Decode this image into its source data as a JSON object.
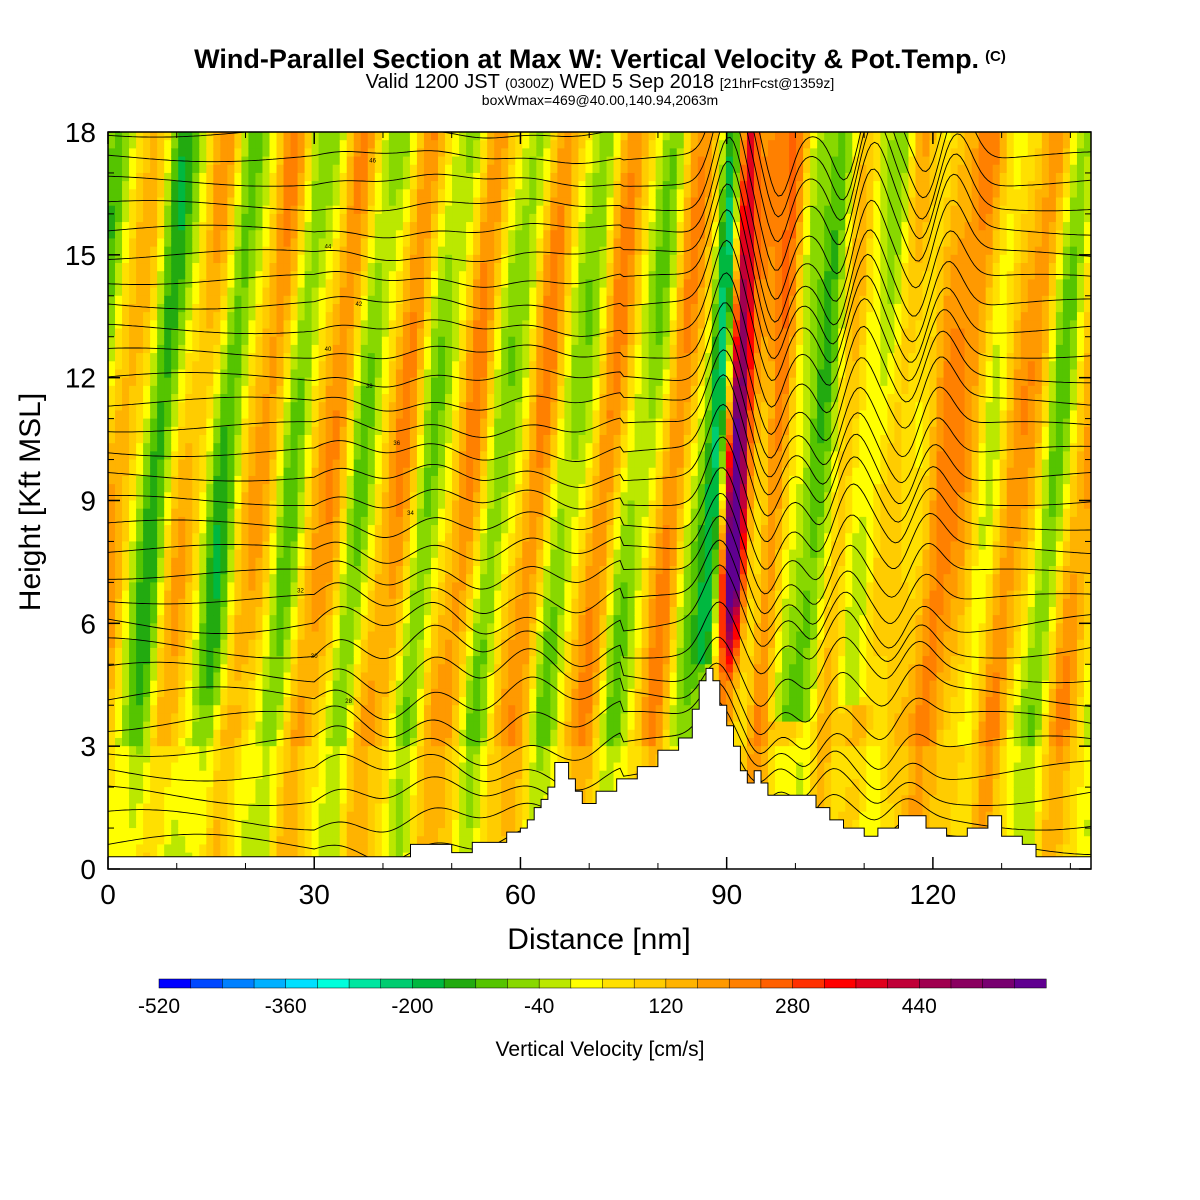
{
  "title": {
    "main": "Wind-Parallel Section at Max W: Vertical Velocity & Pot.Temp.",
    "copyright_mark": "(C)",
    "valid_prefix": "Valid 1200 JST",
    "utc_time": "(0300Z)",
    "valid_date": "WED 5 Sep 2018",
    "forecast": "[21hrFcst@1359z]",
    "box_info": "boxWmax=469@40.00,140.94,2063m"
  },
  "chart_data": {
    "type": "heatmap",
    "xlabel": "Distance [nm]",
    "ylabel": "Height [Kft MSL]",
    "x_range": [
      0,
      143
    ],
    "y_range": [
      0,
      18
    ],
    "x_ticks": [
      0,
      30,
      60,
      90,
      120
    ],
    "y_ticks": [
      0,
      3,
      6,
      9,
      12,
      15,
      18
    ],
    "grid": false,
    "colorbar": {
      "label": "Vertical Velocity [cm/s]",
      "placement": "bottom",
      "range": [
        -520,
        600
      ],
      "step": 40,
      "tick_labels": [
        -520,
        -360,
        -200,
        -40,
        120,
        280,
        440
      ],
      "colors": [
        "#0000ff",
        "#0048ff",
        "#0080ff",
        "#00b0ff",
        "#00e0ff",
        "#00ffdc",
        "#00e6a0",
        "#00cc70",
        "#00b840",
        "#22aa10",
        "#55c400",
        "#88d800",
        "#bbe800",
        "#ffff00",
        "#ffe000",
        "#ffcc00",
        "#ffb300",
        "#ff9900",
        "#ff8000",
        "#ff6000",
        "#ff3000",
        "#ff0000",
        "#e0001c",
        "#c00038",
        "#a00050",
        "#8a0060",
        "#780070",
        "#600090"
      ]
    },
    "terrain_profile": [
      [
        0,
        0.3
      ],
      [
        44,
        0.3
      ],
      [
        44,
        0.6
      ],
      [
        50,
        0.6
      ],
      [
        50,
        0.4
      ],
      [
        53,
        0.4
      ],
      [
        53,
        0.65
      ],
      [
        58,
        0.65
      ],
      [
        58,
        0.9
      ],
      [
        60,
        0.9
      ],
      [
        60,
        1.0
      ],
      [
        61,
        1.0
      ],
      [
        61,
        1.2
      ],
      [
        62,
        1.2
      ],
      [
        62,
        1.5
      ],
      [
        63,
        1.5
      ],
      [
        63,
        1.7
      ],
      [
        64,
        1.7
      ],
      [
        64,
        2.0
      ],
      [
        65,
        2.0
      ],
      [
        65,
        2.6
      ],
      [
        67,
        2.6
      ],
      [
        67,
        2.2
      ],
      [
        68,
        2.2
      ],
      [
        68,
        1.9
      ],
      [
        69,
        1.9
      ],
      [
        69,
        1.6
      ],
      [
        71,
        1.6
      ],
      [
        71,
        1.9
      ],
      [
        74,
        1.9
      ],
      [
        74,
        2.2
      ],
      [
        77,
        2.2
      ],
      [
        77,
        2.5
      ],
      [
        80,
        2.5
      ],
      [
        80,
        2.9
      ],
      [
        83,
        2.9
      ],
      [
        83,
        3.2
      ],
      [
        85,
        3.2
      ],
      [
        85,
        3.9
      ],
      [
        86,
        3.9
      ],
      [
        86,
        4.6
      ],
      [
        87,
        4.6
      ],
      [
        87,
        4.9
      ],
      [
        88,
        4.9
      ],
      [
        88,
        4.6
      ],
      [
        89,
        4.6
      ],
      [
        89,
        4.0
      ],
      [
        90,
        4.0
      ],
      [
        90,
        3.5
      ],
      [
        91,
        3.5
      ],
      [
        91,
        3.0
      ],
      [
        92,
        3.0
      ],
      [
        92,
        2.4
      ],
      [
        93,
        2.4
      ],
      [
        93,
        2.1
      ],
      [
        94,
        2.1
      ],
      [
        94,
        2.4
      ],
      [
        95,
        2.4
      ],
      [
        95,
        2.1
      ],
      [
        96,
        2.1
      ],
      [
        96,
        1.8
      ],
      [
        103,
        1.8
      ],
      [
        103,
        1.5
      ],
      [
        105,
        1.5
      ],
      [
        105,
        1.2
      ],
      [
        107,
        1.2
      ],
      [
        107,
        1.0
      ],
      [
        110,
        1.0
      ],
      [
        110,
        0.8
      ],
      [
        112,
        0.8
      ],
      [
        112,
        1.0
      ],
      [
        115,
        1.0
      ],
      [
        115,
        1.3
      ],
      [
        119,
        1.3
      ],
      [
        119,
        1.0
      ],
      [
        122,
        1.0
      ],
      [
        122,
        0.8
      ],
      [
        125,
        0.8
      ],
      [
        125,
        1.0
      ],
      [
        128,
        1.0
      ],
      [
        128,
        1.3
      ],
      [
        130,
        1.3
      ],
      [
        130,
        0.8
      ],
      [
        133,
        0.8
      ],
      [
        133,
        0.6
      ],
      [
        135,
        0.6
      ],
      [
        135,
        0.3
      ],
      [
        143,
        0.3
      ]
    ],
    "contour_label_samples": [
      "46",
      "44",
      "42",
      "40",
      "38",
      "36",
      "34",
      "32",
      "30",
      "28"
    ],
    "w_max": 469
  }
}
